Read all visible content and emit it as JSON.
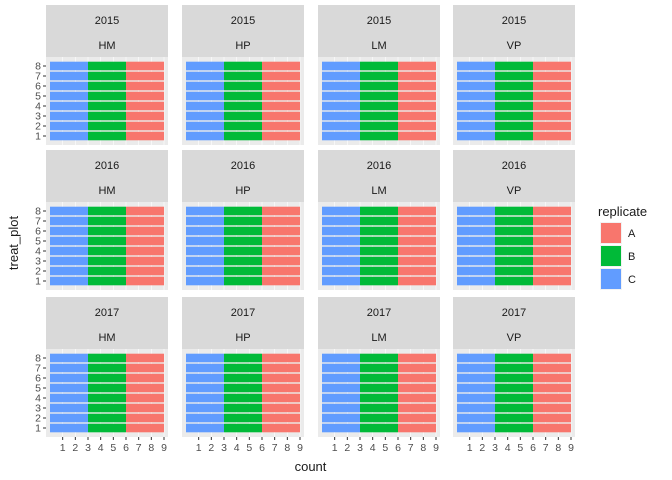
{
  "chart_data": {
    "type": "bar",
    "orientation": "horizontal",
    "stacked": true,
    "facet_rows": [
      "2015",
      "2016",
      "2017"
    ],
    "facet_cols": [
      "HM",
      "HP",
      "LM",
      "VP"
    ],
    "categories": [
      "1",
      "2",
      "3",
      "4",
      "5",
      "6",
      "7",
      "8"
    ],
    "series": [
      {
        "name": "C",
        "values": [
          3,
          3,
          3,
          3,
          3,
          3,
          3,
          3
        ]
      },
      {
        "name": "B",
        "values": [
          3,
          3,
          3,
          3,
          3,
          3,
          3,
          3
        ]
      },
      {
        "name": "A",
        "values": [
          3,
          3,
          3,
          3,
          3,
          3,
          3,
          3
        ]
      }
    ],
    "xlabel": "count",
    "ylabel": "treat_plot",
    "x_ticks": [
      "1",
      "2",
      "3",
      "4",
      "5",
      "6",
      "7",
      "8",
      "9"
    ],
    "xlim": [
      0,
      9
    ],
    "legend": {
      "title": "replicate",
      "position": "right",
      "entries": [
        {
          "name": "A",
          "color": "#F8766D"
        },
        {
          "name": "B",
          "color": "#00BA38"
        },
        {
          "name": "C",
          "color": "#619CFF"
        }
      ]
    },
    "colors": {
      "A": "#F8766D",
      "B": "#00BA38",
      "C": "#619CFF"
    },
    "grid": true
  }
}
